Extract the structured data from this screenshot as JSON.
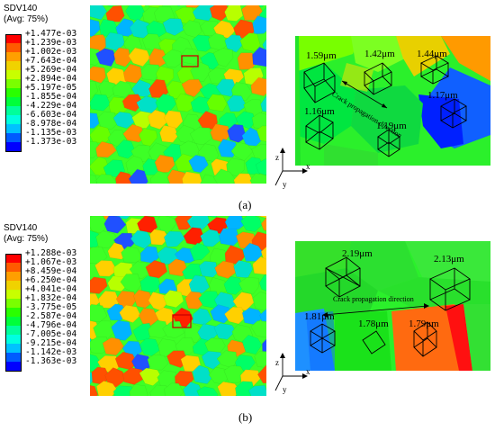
{
  "panel_a": {
    "legend_title": "SDV140",
    "legend_subtitle": "(Avg: 75%)",
    "legend_values": [
      "+1.477e-03",
      "+1.239e-03",
      "+1.002e-03",
      "+7.643e-04",
      "+5.269e-04",
      "+2.894e-04",
      "+5.197e-05",
      "-1.855e-04",
      "-4.229e-04",
      "-6.603e-04",
      "-8.978e-04",
      "-1.135e-03",
      "-1.373e-03"
    ],
    "legend_colors": [
      "#ff0000",
      "#ff5a00",
      "#ff9f00",
      "#f0d200",
      "#c8ff00",
      "#7aff00",
      "#2aff00",
      "#00ff3a",
      "#00ff9b",
      "#00ffe0",
      "#00c2ff",
      "#005cff",
      "#0000ff"
    ],
    "grains": [
      "1.59μm",
      "1.42μm",
      "1.44μm",
      "1.17μm",
      "1.16μm",
      "1.19μm"
    ],
    "crack_label": "Crack propagation direction",
    "caption": "(a)"
  },
  "panel_b": {
    "legend_title": "SDV140",
    "legend_subtitle": "(Avg: 75%)",
    "legend_values": [
      "+1.288e-03",
      "+1.067e-03",
      "+8.459e-04",
      "+6.250e-04",
      "+4.041e-04",
      "+1.832e-04",
      "-3.775e-05",
      "-2.587e-04",
      "-4.796e-04",
      "-7.005e-04",
      "-9.215e-04",
      "-1.142e-03",
      "-1.363e-03"
    ],
    "legend_colors": [
      "#ff0000",
      "#ff5a00",
      "#ff9f00",
      "#f0d200",
      "#c8ff00",
      "#7aff00",
      "#2aff00",
      "#00ff3a",
      "#00ff9b",
      "#00ffe0",
      "#00c2ff",
      "#005cff",
      "#0000ff"
    ],
    "grains": [
      "2.19μm",
      "2.13μm",
      "1.81μm",
      "1.78μm",
      "1.79μm"
    ],
    "crack_label": "Crack propagation direction",
    "caption": "(b)"
  },
  "axes": {
    "z": "z",
    "x": "x",
    "y": "y"
  }
}
